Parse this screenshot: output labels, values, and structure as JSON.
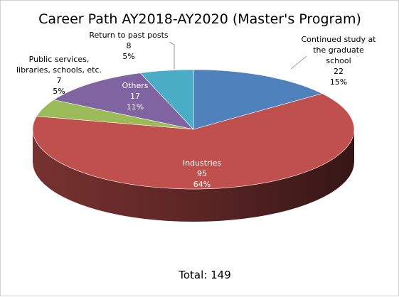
{
  "chart_data": {
    "type": "pie",
    "title": "Career Path AY2018-AY2020 (Master's Program)",
    "total_label": "Total: 149",
    "slices": [
      {
        "label_lines": [
          "Continued study at",
          "the graduate",
          "school"
        ],
        "value": 22,
        "percent": "15%",
        "color": "#4f81bd"
      },
      {
        "label_lines": [
          "Industries"
        ],
        "value": 95,
        "percent": "64%",
        "color": "#c0504d"
      },
      {
        "label_lines": [
          "Public services,",
          "libraries, schools, etc."
        ],
        "value": 7,
        "percent": "5%",
        "color": "#9bbb59"
      },
      {
        "label_lines": [
          "Others"
        ],
        "value": 17,
        "percent": "11%",
        "color": "#8064a2"
      },
      {
        "label_lines": [
          "Return to past posts"
        ],
        "value": 8,
        "percent": "5%",
        "color": "#4bacc6"
      }
    ]
  }
}
